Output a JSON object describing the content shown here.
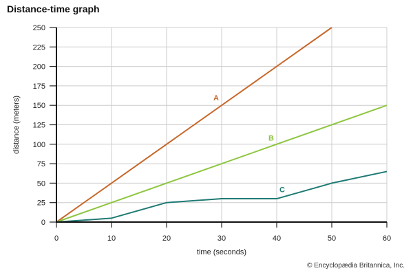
{
  "chart_data": {
    "type": "line",
    "title": "Distance-time graph",
    "xlabel": "time (seconds)",
    "ylabel": "distance (meters)",
    "xlim": [
      0,
      60
    ],
    "ylim": [
      0,
      250
    ],
    "x_ticks": [
      0,
      10,
      20,
      30,
      40,
      50,
      60
    ],
    "y_ticks": [
      0,
      25,
      50,
      75,
      100,
      125,
      150,
      175,
      200,
      225,
      250
    ],
    "grid": true,
    "legend": "inline labels",
    "series": [
      {
        "name": "A",
        "color": "#c8672a",
        "x": [
          0,
          50
        ],
        "y": [
          0,
          250
        ],
        "label_pos": [
          29,
          160
        ]
      },
      {
        "name": "B",
        "color": "#8dc63f",
        "x": [
          0,
          60
        ],
        "y": [
          0,
          150
        ],
        "label_pos": [
          39,
          108
        ]
      },
      {
        "name": "C",
        "color": "#1f7a74",
        "x": [
          0,
          10,
          20,
          30,
          40,
          50,
          60
        ],
        "y": [
          0,
          5,
          25,
          30,
          30,
          50,
          65
        ],
        "label_pos": [
          41,
          42
        ]
      }
    ]
  },
  "credit": "© Encyclopædia Britannica, Inc."
}
